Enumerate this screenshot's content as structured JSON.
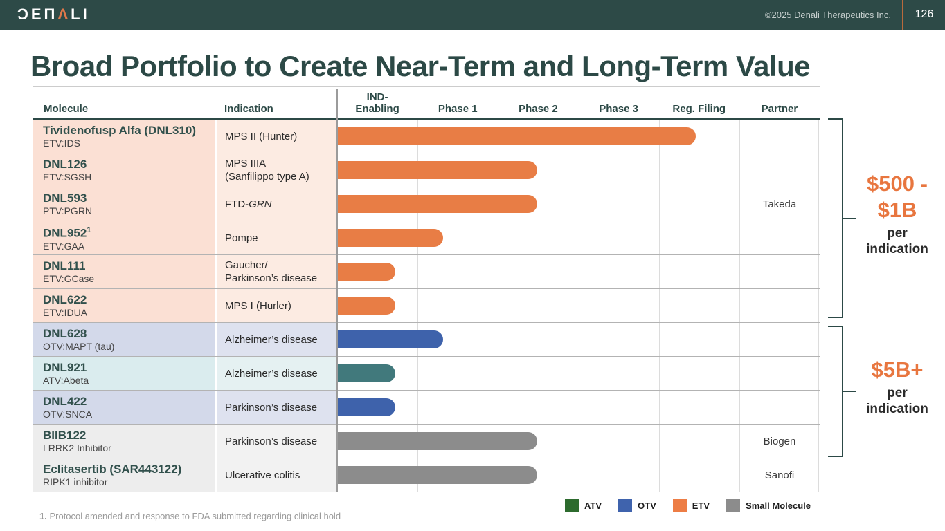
{
  "header": {
    "logo_parts": [
      "ƆEΠ",
      "Λ",
      "LI"
    ],
    "logo_meaning": "DENALI",
    "copyright": "©2025 Denali Therapeutics Inc.",
    "page_number": "126"
  },
  "title": "Broad Portfolio to Create Near-Term and Long-Term Value",
  "table": {
    "molecule_header": "Molecule",
    "indication_header": "Indication",
    "stage_headers": [
      "IND-\nEnabling",
      "Phase 1",
      "Phase 2",
      "Phase 3",
      "Reg. Filing"
    ],
    "partner_header": "Partner",
    "rows": [
      {
        "name": "Tividenofusp Alfa (DNL310)",
        "sup": "",
        "sublabel": "ETV:IDS",
        "indication": [
          "MPS II (Hunter)"
        ],
        "category": "ETV",
        "partner": ""
      },
      {
        "name": "DNL126",
        "sup": "",
        "sublabel": "ETV:SGSH",
        "indication": [
          "MPS IIIA",
          "(Sanfilippo type A)"
        ],
        "category": "ETV",
        "partner": ""
      },
      {
        "name": "DNL593",
        "sup": "",
        "sublabel": "PTV:PGRN",
        "indication": [
          "FTD-*GRN*"
        ],
        "category": "ETV",
        "partner": "Takeda"
      },
      {
        "name": "DNL952",
        "sup": "1",
        "sublabel": "ETV:GAA",
        "indication": [
          "Pompe"
        ],
        "category": "ETV",
        "partner": ""
      },
      {
        "name": "DNL111",
        "sup": "",
        "sublabel": "ETV:GCase",
        "indication": [
          "Gaucher/",
          "Parkinson’s disease"
        ],
        "category": "ETV",
        "partner": ""
      },
      {
        "name": "DNL622",
        "sup": "",
        "sublabel": "ETV:IDUA",
        "indication": [
          "MPS I (Hurler)"
        ],
        "category": "ETV",
        "partner": ""
      },
      {
        "name": "DNL628",
        "sup": "",
        "sublabel": "OTV:MAPT (tau)",
        "indication": [
          "Alzheimer’s disease"
        ],
        "category": "OTV",
        "partner": ""
      },
      {
        "name": "DNL921",
        "sup": "",
        "sublabel": "ATV:Abeta",
        "indication": [
          "Alzheimer’s disease"
        ],
        "category": "ATV",
        "partner": ""
      },
      {
        "name": "DNL422",
        "sup": "",
        "sublabel": "OTV:SNCA",
        "indication": [
          "Parkinson’s disease"
        ],
        "category": "OTV",
        "partner": ""
      },
      {
        "name": "BIIB122",
        "sup": "",
        "sublabel": "LRRK2 Inhibitor",
        "indication": [
          "Parkinson’s disease"
        ],
        "category": "SM",
        "partner": "Biogen"
      },
      {
        "name": "Eclitasertib (SAR443122)",
        "sup": "",
        "sublabel": "RIPK1 inhibitor",
        "indication": [
          "Ulcerative colitis"
        ],
        "category": "SM",
        "partner": "Sanofi"
      }
    ]
  },
  "chart_data": {
    "type": "bar",
    "orientation": "horizontal",
    "title": "Broad Portfolio to Create Near-Term and Long-Term Value",
    "stage_axis": [
      "IND-Enabling",
      "Phase 1",
      "Phase 2",
      "Phase 3",
      "Reg. Filing"
    ],
    "units_note": "bar_end_units: 1 unit = one stage column width, bars start at left edge of IND-Enabling",
    "series": [
      {
        "molecule": "Tividenofusp Alfa (DNL310)",
        "platform": "ETV",
        "indication": "MPS II (Hunter)",
        "bar_end_units": 4.46,
        "stage_reached": "Reg. Filing",
        "partner": ""
      },
      {
        "molecule": "DNL126",
        "platform": "ETV",
        "indication": "MPS IIIA (Sanfilippo type A)",
        "bar_end_units": 2.49,
        "stage_reached": "Phase 2",
        "partner": ""
      },
      {
        "molecule": "DNL593",
        "platform": "ETV",
        "indication": "FTD-GRN",
        "bar_end_units": 2.49,
        "stage_reached": "Phase 2",
        "partner": "Takeda"
      },
      {
        "molecule": "DNL952",
        "platform": "ETV",
        "indication": "Pompe",
        "bar_end_units": 1.32,
        "stage_reached": "Phase 1",
        "partner": ""
      },
      {
        "molecule": "DNL111",
        "platform": "ETV",
        "indication": "Gaucher/Parkinson’s disease",
        "bar_end_units": 0.72,
        "stage_reached": "IND-Enabling",
        "partner": ""
      },
      {
        "molecule": "DNL622",
        "platform": "ETV",
        "indication": "MPS I (Hurler)",
        "bar_end_units": 0.72,
        "stage_reached": "IND-Enabling",
        "partner": ""
      },
      {
        "molecule": "DNL628",
        "platform": "OTV",
        "indication": "Alzheimer’s disease",
        "bar_end_units": 1.32,
        "stage_reached": "Phase 1",
        "partner": ""
      },
      {
        "molecule": "DNL921",
        "platform": "ATV",
        "indication": "Alzheimer’s disease",
        "bar_end_units": 0.72,
        "stage_reached": "IND-Enabling",
        "partner": ""
      },
      {
        "molecule": "DNL422",
        "platform": "OTV",
        "indication": "Parkinson’s disease",
        "bar_end_units": 0.72,
        "stage_reached": "IND-Enabling",
        "partner": ""
      },
      {
        "molecule": "BIIB122",
        "platform": "Small Molecule",
        "indication": "Parkinson’s disease",
        "bar_end_units": 2.49,
        "stage_reached": "Phase 2",
        "partner": "Biogen"
      },
      {
        "molecule": "Eclitasertib (SAR443122)",
        "platform": "Small Molecule",
        "indication": "Ulcerative colitis",
        "bar_end_units": 2.49,
        "stage_reached": "Phase 2",
        "partner": "Sanofi"
      }
    ],
    "legend_position": "bottom-right",
    "grid": "vertical stage gridlines on"
  },
  "bar_colors": {
    "ETV": "#e87d45",
    "OTV": "#3e62ab",
    "ATV": "#41797c",
    "SM": "#8c8c8c"
  },
  "row_backgrounds": {
    "ETV": [
      "#fbe0d4",
      "#fcebe2"
    ],
    "OTV": [
      "#d3d9ea",
      "#dee2ef"
    ],
    "ATV": [
      "#daecee",
      "#e5f1f2"
    ],
    "SM": [
      "#ededed",
      "#f2f2f2"
    ]
  },
  "annotations": [
    {
      "value": "$500 - $1B",
      "caption": "per indication",
      "rows_covered": "Tividenofusp Alfa (DNL310) through DNL622"
    },
    {
      "value": "$5B+",
      "caption": "per indication",
      "rows_covered": "DNL628 through BIIB122"
    }
  ],
  "legend": [
    {
      "label": "ATV",
      "color": "#2d6b2e"
    },
    {
      "label": "OTV",
      "color": "#3f63ad"
    },
    {
      "label": "ETV",
      "color": "#ed7d45"
    },
    {
      "label": "Small Molecule",
      "color": "#8c8c8c"
    }
  ],
  "footnote": {
    "marker": "1.",
    "text": "Protocol amended and response to FDA submitted regarding clinical hold"
  },
  "accent_colors": {
    "header_bar": "#2d4a47",
    "title_text": "#2c4946",
    "value_text": "#e8763f",
    "divider_orange": "#b96a3c"
  }
}
